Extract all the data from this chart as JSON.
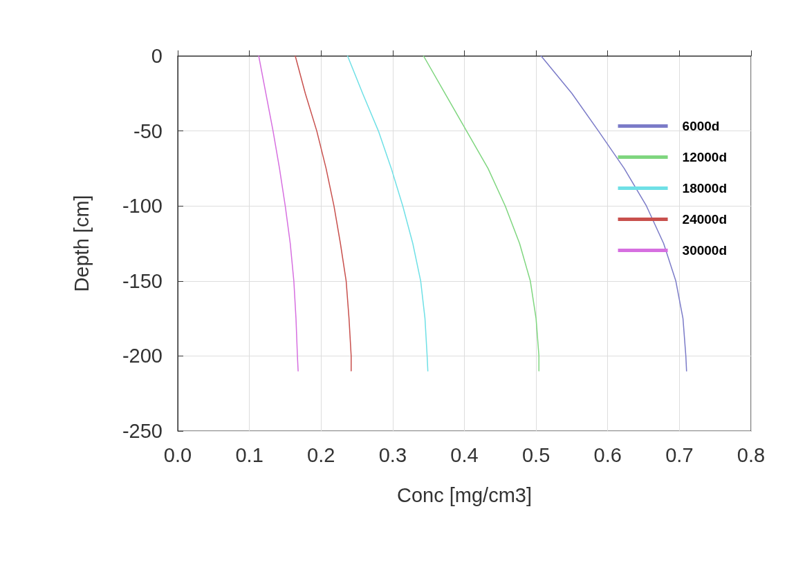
{
  "chart_data": {
    "type": "line",
    "xlabel": "Conc [mg/cm3]",
    "ylabel": "Depth [cm]",
    "xlim": [
      0,
      0.8
    ],
    "xticks": [
      {
        "value": 0,
        "label": "0.0"
      },
      0.1,
      0.2,
      0.3,
      0.4,
      0.5,
      0.6,
      0.7,
      0.8
    ],
    "ylim": [
      -250,
      0
    ],
    "yticks": [
      -250,
      -200,
      -150,
      -100,
      -50,
      0
    ],
    "grid": true,
    "legend": "top right",
    "marker": "none",
    "line_style": "solid",
    "series": [
      {
        "name": "6000d",
        "color": "#7b7bc8",
        "x": [
          0.507,
          0.55,
          0.587,
          0.623,
          0.654,
          0.678,
          0.695,
          0.705,
          0.709,
          0.71
        ],
        "values": [
          0,
          -25,
          -50,
          -75,
          -100,
          -125,
          -150,
          -175,
          -200,
          -210
        ]
      },
      {
        "name": "12000d",
        "color": "#7fd67f",
        "x": [
          0.343,
          0.373,
          0.403,
          0.433,
          0.457,
          0.477,
          0.492,
          0.5,
          0.504,
          0.504
        ],
        "values": [
          0,
          -25,
          -50,
          -75,
          -100,
          -125,
          -150,
          -175,
          -200,
          -210
        ]
      },
      {
        "name": "18000d",
        "color": "#6fe0e6",
        "x": [
          0.237,
          0.258,
          0.28,
          0.298,
          0.314,
          0.328,
          0.339,
          0.345,
          0.348,
          0.349
        ],
        "values": [
          0,
          -25,
          -50,
          -75,
          -100,
          -125,
          -150,
          -175,
          -200,
          -210
        ]
      },
      {
        "name": "24000d",
        "color": "#c8504d",
        "x": [
          0.164,
          0.178,
          0.194,
          0.207,
          0.218,
          0.227,
          0.235,
          0.239,
          0.242,
          0.242
        ],
        "values": [
          0,
          -25,
          -50,
          -75,
          -100,
          -125,
          -150,
          -175,
          -200,
          -210
        ]
      },
      {
        "name": "30000d",
        "color": "#d66fe0",
        "x": [
          0.113,
          0.123,
          0.133,
          0.142,
          0.15,
          0.157,
          0.162,
          0.165,
          0.167,
          0.168
        ],
        "values": [
          0,
          -25,
          -50,
          -75,
          -100,
          -125,
          -150,
          -175,
          -200,
          -210
        ]
      }
    ]
  }
}
